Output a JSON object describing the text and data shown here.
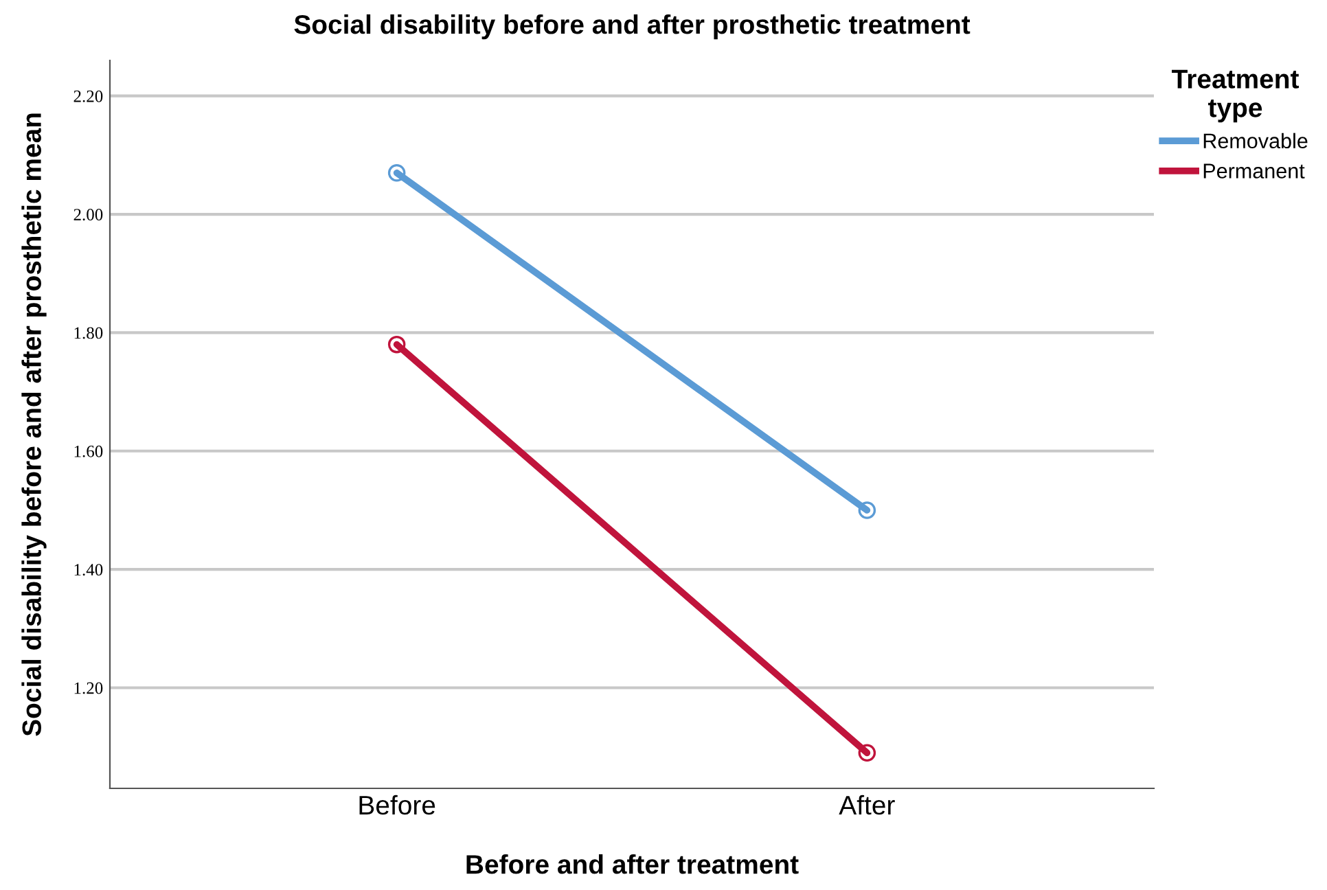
{
  "chart_data": {
    "type": "line",
    "title": "Social disability before and after prosthetic treatment",
    "xlabel": "Before and after treatment",
    "ylabel": "Social disability before and after prosthetic mean",
    "legend_title": "Treatment\ntype",
    "categories": [
      "Before",
      "After"
    ],
    "series": [
      {
        "name": "Removable",
        "color": "#5b9bd5",
        "values": [
          2.07,
          1.5
        ]
      },
      {
        "name": "Permanent",
        "color": "#c0143c",
        "values": [
          1.78,
          1.09
        ]
      }
    ],
    "ylim": [
      1.03,
      2.26
    ],
    "yticks": [
      {
        "value": 1.2,
        "label": "1.20"
      },
      {
        "value": 1.4,
        "label": "1.40"
      },
      {
        "value": 1.6,
        "label": "1.60"
      },
      {
        "value": 1.8,
        "label": "1.80"
      },
      {
        "value": 2.0,
        "label": "2.00"
      },
      {
        "value": 2.2,
        "label": "2.20"
      }
    ],
    "grid": "y",
    "legend": "top right",
    "marker": "circle"
  }
}
